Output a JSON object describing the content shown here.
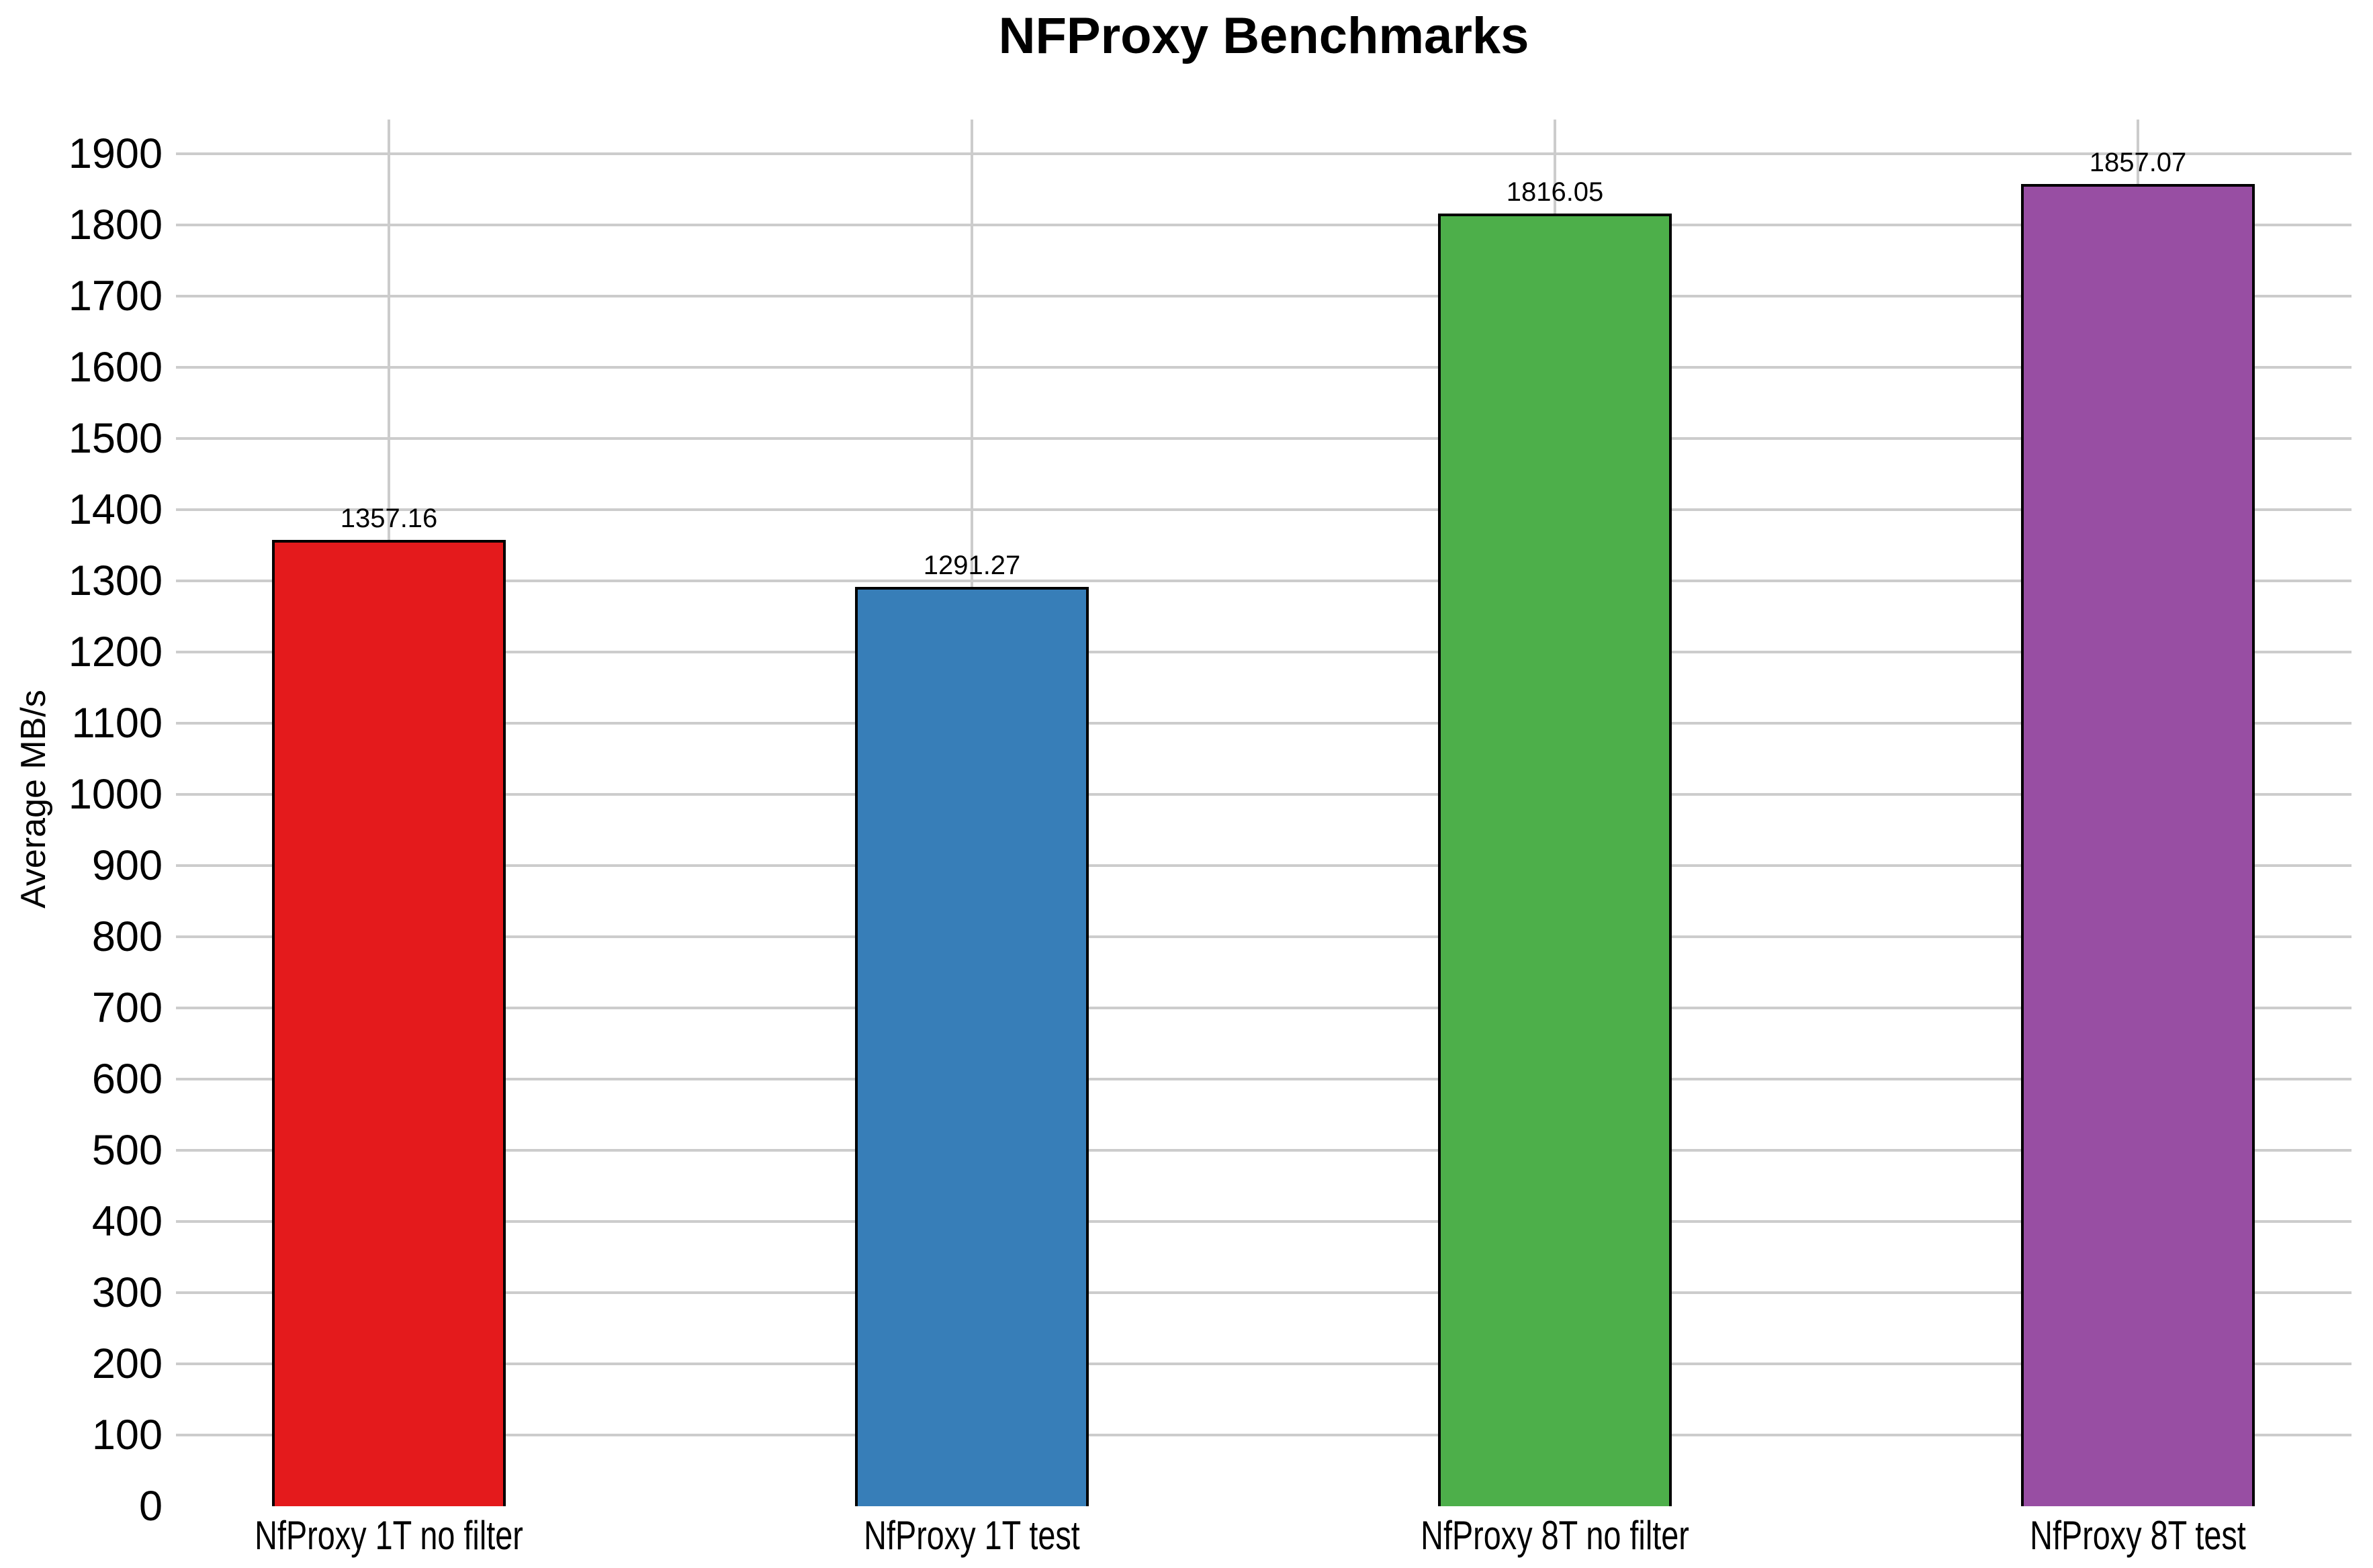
{
  "page": {
    "background": "#ffffff",
    "text_color": "#000000"
  },
  "chart_data": {
    "type": "bar",
    "title": "NFProxy Benchmarks",
    "xlabel": "",
    "ylabel": "Average MB/s",
    "categories": [
      "NfProxy 1T no filter",
      "NfProxy 1T test",
      "NfProxy 8T no filter",
      "NfProxy 8T test"
    ],
    "values": [
      1357.16,
      1291.27,
      1816.05,
      1857.07
    ],
    "value_labels": [
      "1357.16",
      "1291.27",
      "1816.05",
      "1857.07"
    ],
    "bar_colors": [
      "#e41a1c",
      "#377eb8",
      "#4daf4a",
      "#984ea3"
    ],
    "bar_border_color": "#000000",
    "y_ticks": [
      0,
      100,
      200,
      300,
      400,
      500,
      600,
      700,
      800,
      900,
      1000,
      1100,
      1200,
      1300,
      1400,
      1500,
      1600,
      1700,
      1800,
      1900
    ],
    "ylim": [
      0,
      1948
    ],
    "grid": true,
    "gridline_color": "#cccccc",
    "legend": "none"
  }
}
